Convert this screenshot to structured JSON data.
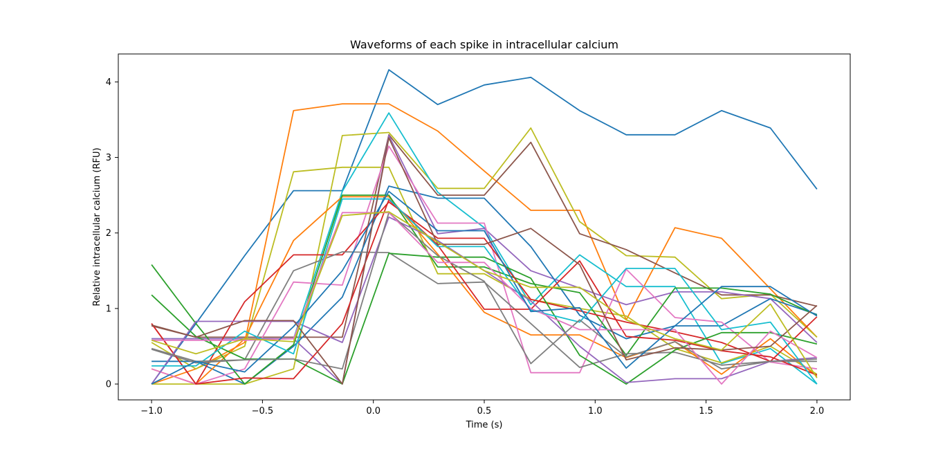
{
  "chart_data": {
    "type": "line",
    "title": "Waveforms of each spike in intracellular calcium",
    "xlabel": "Time (s)",
    "ylabel": "Relative intracellular calcium (RFU)",
    "xlim": [
      -1.15,
      2.15
    ],
    "ylim": [
      -0.21,
      4.37
    ],
    "xticks": [
      -1.0,
      -0.5,
      0.0,
      0.5,
      1.0,
      1.5,
      2.0
    ],
    "xtick_labels": [
      "−1.0",
      "−0.5",
      "0.0",
      "0.5",
      "1.0",
      "1.5",
      "2.0"
    ],
    "yticks": [
      0,
      1,
      2,
      3,
      4
    ],
    "ytick_labels": [
      "0",
      "1",
      "2",
      "3",
      "4"
    ],
    "grid": false,
    "legend": "none",
    "x": [
      -1.0,
      -0.8,
      -0.58,
      -0.36,
      -0.14,
      0.07,
      0.29,
      0.5,
      0.71,
      0.93,
      1.14,
      1.36,
      1.57,
      1.79,
      2.0
    ],
    "series": [
      {
        "color": "#1f77b4",
        "values": [
          0.0,
          0.8,
          1.7,
          2.56,
          2.56,
          4.16,
          3.7,
          3.96,
          4.06,
          3.62,
          3.3,
          3.3,
          3.62,
          3.39,
          2.58
        ]
      },
      {
        "color": "#ff7f0e",
        "values": [
          0.0,
          0.2,
          0.55,
          3.62,
          3.71,
          3.71,
          3.35,
          2.82,
          2.3,
          2.3,
          0.85,
          2.07,
          1.93,
          1.26,
          0.62
        ]
      },
      {
        "color": "#bcbd22",
        "values": [
          0.0,
          0.0,
          0.0,
          0.2,
          3.29,
          3.33,
          2.59,
          2.59,
          3.39,
          2.15,
          1.7,
          1.68,
          1.13,
          1.19,
          0.62
        ]
      },
      {
        "color": "#17becf",
        "values": [
          0.6,
          0.6,
          0.6,
          0.6,
          2.55,
          3.59,
          2.54,
          2.07,
          1.05,
          1.71,
          1.29,
          1.29,
          0.27,
          0.47,
          0.0
        ]
      },
      {
        "color": "#8c564b",
        "values": [
          0.77,
          0.62,
          0.62,
          0.62,
          0.62,
          3.3,
          2.5,
          2.5,
          3.2,
          1.99,
          1.78,
          1.47,
          1.18,
          1.18,
          1.03
        ]
      },
      {
        "color": "#bcbd22",
        "values": [
          0.55,
          0.2,
          0.5,
          2.81,
          2.87,
          2.87,
          1.46,
          1.46,
          1.12,
          1.0,
          0.9,
          0.47,
          0.28,
          0.5,
          0.13
        ]
      },
      {
        "color": "#9467bd",
        "values": [
          0.6,
          0.6,
          0.6,
          0.6,
          0.0,
          3.29,
          1.99,
          2.06,
          1.5,
          1.27,
          1.05,
          1.22,
          1.22,
          1.13,
          0.55
        ]
      },
      {
        "color": "#1f77b4",
        "values": [
          0.3,
          0.3,
          0.0,
          0.5,
          1.15,
          2.62,
          2.46,
          2.46,
          1.82,
          0.91,
          0.6,
          0.77,
          0.77,
          1.13,
          0.92
        ]
      },
      {
        "color": "#ff7f0e",
        "values": [
          0.2,
          0.0,
          0.6,
          1.9,
          2.48,
          2.48,
          1.72,
          0.95,
          0.65,
          0.65,
          0.35,
          0.56,
          0.13,
          0.6,
          0.1
        ]
      },
      {
        "color": "#e377c2",
        "values": [
          0.2,
          0.0,
          0.2,
          1.35,
          1.31,
          3.15,
          2.13,
          2.13,
          0.15,
          0.15,
          1.52,
          0.88,
          0.82,
          0.29,
          0.2
        ]
      },
      {
        "color": "#2ca02c",
        "values": [
          1.58,
          0.8,
          0.0,
          0.52,
          2.5,
          2.5,
          1.55,
          1.55,
          1.33,
          1.21,
          0.38,
          1.27,
          1.27,
          1.19,
          0.91
        ]
      },
      {
        "color": "#d62728",
        "values": [
          0.8,
          0.0,
          1.09,
          1.71,
          1.71,
          2.41,
          1.93,
          1.93,
          1.12,
          0.97,
          0.82,
          0.69,
          0.55,
          0.3,
          0.89
        ]
      },
      {
        "color": "#7f7f7f",
        "values": [
          0.46,
          0.28,
          0.32,
          1.5,
          1.75,
          1.74,
          1.33,
          1.35,
          0.8,
          0.22,
          0.4,
          0.42,
          0.25,
          0.3,
          0.3
        ]
      },
      {
        "color": "#2ca02c",
        "values": [
          1.18,
          0.63,
          0.33,
          0.33,
          0.0,
          1.73,
          1.68,
          1.68,
          1.4,
          0.38,
          0.0,
          0.45,
          0.68,
          0.68,
          0.53
        ]
      },
      {
        "color": "#d62728",
        "values": [
          0.8,
          0.0,
          0.08,
          0.07,
          0.8,
          2.44,
          1.84,
          0.99,
          0.99,
          1.63,
          0.63,
          0.58,
          0.44,
          0.36,
          0.12
        ]
      },
      {
        "color": "#9467bd",
        "values": [
          0.0,
          0.83,
          0.83,
          0.83,
          0.55,
          2.21,
          1.9,
          1.5,
          1.1,
          0.5,
          0.02,
          0.07,
          0.07,
          0.3,
          0.35
        ]
      },
      {
        "color": "#17becf",
        "values": [
          0.24,
          0.24,
          0.7,
          0.4,
          2.45,
          2.45,
          1.82,
          1.82,
          0.98,
          0.82,
          1.53,
          1.53,
          0.72,
          0.82,
          0.0
        ]
      },
      {
        "color": "#7f7f7f",
        "values": [
          0.47,
          0.3,
          0.32,
          0.33,
          0.2,
          2.27,
          1.7,
          1.36,
          0.27,
          0.85,
          0.36,
          0.56,
          0.2,
          0.3,
          0.33
        ]
      },
      {
        "color": "#e377c2",
        "values": [
          0.58,
          0.58,
          0.58,
          0.6,
          2.27,
          2.27,
          1.61,
          1.61,
          1.0,
          0.72,
          0.72,
          0.72,
          0.0,
          0.7,
          0.35
        ]
      },
      {
        "color": "#1f77b4",
        "values": [
          0.0,
          0.3,
          0.16,
          0.76,
          1.5,
          2.55,
          2.03,
          2.03,
          0.96,
          1.01,
          0.21,
          0.77,
          1.29,
          1.29,
          0.9
        ]
      },
      {
        "color": "#8c564b",
        "values": [
          0.78,
          0.62,
          0.84,
          0.84,
          0.0,
          3.26,
          1.85,
          1.85,
          2.06,
          1.58,
          0.32,
          0.48,
          0.45,
          0.5,
          1.04
        ]
      },
      {
        "color": "#bcbd22",
        "values": [
          0.58,
          0.4,
          0.6,
          0.56,
          2.23,
          2.28,
          1.88,
          1.5,
          1.28,
          1.28,
          0.85,
          0.6,
          0.45,
          1.06,
          0.08
        ]
      }
    ]
  }
}
